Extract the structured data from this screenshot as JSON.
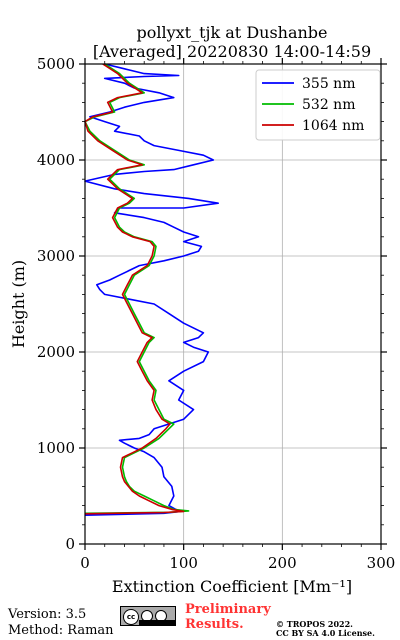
{
  "chart_data": {
    "type": "line",
    "title": [
      "pollyxt_tjk at Dushanbe",
      "[Averaged] 20220830 14:00-14:59"
    ],
    "xlabel": "Extinction Coefficient [Mm⁻¹]",
    "ylabel": "Height (m)",
    "xlim": [
      0,
      300
    ],
    "ylim": [
      0,
      5000
    ],
    "xticks": [
      0,
      100,
      200,
      300
    ],
    "yticks": [
      0,
      1000,
      2000,
      3000,
      4000,
      5000
    ],
    "grid": true,
    "legend_position": "top-right",
    "series": [
      {
        "name": "355 nm",
        "color": "#0000ff",
        "points": [
          [
            0,
            300
          ],
          [
            80,
            320
          ],
          [
            97,
            340
          ],
          [
            92,
            360
          ],
          [
            85,
            400
          ],
          [
            90,
            500
          ],
          [
            88,
            600
          ],
          [
            80,
            700
          ],
          [
            78,
            800
          ],
          [
            70,
            900
          ],
          [
            60,
            960
          ],
          [
            50,
            1000
          ],
          [
            40,
            1050
          ],
          [
            35,
            1080
          ],
          [
            55,
            1100
          ],
          [
            65,
            1140
          ],
          [
            70,
            1200
          ],
          [
            85,
            1250
          ],
          [
            100,
            1300
          ],
          [
            110,
            1400
          ],
          [
            95,
            1500
          ],
          [
            100,
            1600
          ],
          [
            85,
            1700
          ],
          [
            100,
            1800
          ],
          [
            120,
            1900
          ],
          [
            125,
            2000
          ],
          [
            110,
            2050
          ],
          [
            100,
            2100
          ],
          [
            115,
            2150
          ],
          [
            120,
            2200
          ],
          [
            100,
            2300
          ],
          [
            85,
            2400
          ],
          [
            70,
            2500
          ],
          [
            45,
            2550
          ],
          [
            20,
            2600
          ],
          [
            15,
            2650
          ],
          [
            12,
            2700
          ],
          [
            25,
            2750
          ],
          [
            35,
            2800
          ],
          [
            45,
            2850
          ],
          [
            55,
            2900
          ],
          [
            80,
            2950
          ],
          [
            100,
            3000
          ],
          [
            115,
            3050
          ],
          [
            118,
            3100
          ],
          [
            100,
            3150
          ],
          [
            115,
            3200
          ],
          [
            100,
            3250
          ],
          [
            90,
            3300
          ],
          [
            80,
            3350
          ],
          [
            60,
            3400
          ],
          [
            30,
            3450
          ],
          [
            35,
            3500
          ],
          [
            100,
            3500
          ],
          [
            135,
            3550
          ],
          [
            105,
            3600
          ],
          [
            60,
            3650
          ],
          [
            30,
            3700
          ],
          [
            0,
            3780
          ],
          [
            30,
            3850
          ],
          [
            60,
            3880
          ],
          [
            90,
            3900
          ],
          [
            110,
            3950
          ],
          [
            130,
            4000
          ],
          [
            120,
            4050
          ],
          [
            95,
            4100
          ],
          [
            70,
            4150
          ],
          [
            60,
            4200
          ],
          [
            55,
            4250
          ],
          [
            30,
            4300
          ],
          [
            35,
            4350
          ],
          [
            20,
            4400
          ],
          [
            5,
            4450
          ],
          [
            25,
            4500
          ],
          [
            40,
            4550
          ],
          [
            60,
            4600
          ],
          [
            90,
            4650
          ],
          [
            75,
            4700
          ],
          [
            50,
            4750
          ],
          [
            40,
            4800
          ],
          [
            20,
            4850
          ],
          [
            60,
            4870
          ],
          [
            95,
            4880
          ],
          [
            60,
            4900
          ],
          [
            40,
            4950
          ],
          [
            20,
            5000
          ]
        ]
      },
      {
        "name": "532 nm",
        "color": "#00bb00",
        "points": [
          [
            0,
            320
          ],
          [
            85,
            330
          ],
          [
            105,
            345
          ],
          [
            90,
            360
          ],
          [
            80,
            400
          ],
          [
            70,
            450
          ],
          [
            60,
            500
          ],
          [
            50,
            550
          ],
          [
            45,
            600
          ],
          [
            42,
            650
          ],
          [
            40,
            700
          ],
          [
            38,
            800
          ],
          [
            40,
            900
          ],
          [
            50,
            950
          ],
          [
            60,
            1000
          ],
          [
            75,
            1100
          ],
          [
            85,
            1200
          ],
          [
            90,
            1250
          ],
          [
            80,
            1300
          ],
          [
            75,
            1400
          ],
          [
            70,
            1500
          ],
          [
            72,
            1600
          ],
          [
            65,
            1700
          ],
          [
            60,
            1800
          ],
          [
            55,
            1900
          ],
          [
            60,
            2000
          ],
          [
            65,
            2100
          ],
          [
            70,
            2150
          ],
          [
            60,
            2200
          ],
          [
            55,
            2300
          ],
          [
            50,
            2400
          ],
          [
            45,
            2500
          ],
          [
            40,
            2600
          ],
          [
            45,
            2700
          ],
          [
            50,
            2800
          ],
          [
            65,
            2900
          ],
          [
            70,
            3000
          ],
          [
            72,
            3100
          ],
          [
            68,
            3150
          ],
          [
            50,
            3200
          ],
          [
            40,
            3250
          ],
          [
            35,
            3300
          ],
          [
            30,
            3400
          ],
          [
            35,
            3500
          ],
          [
            45,
            3550
          ],
          [
            50,
            3600
          ],
          [
            35,
            3700
          ],
          [
            25,
            3800
          ],
          [
            35,
            3900
          ],
          [
            60,
            3950
          ],
          [
            45,
            4000
          ],
          [
            30,
            4100
          ],
          [
            15,
            4200
          ],
          [
            5,
            4300
          ],
          [
            0,
            4400
          ],
          [
            10,
            4450
          ],
          [
            30,
            4500
          ],
          [
            25,
            4600
          ],
          [
            35,
            4650
          ],
          [
            60,
            4700
          ],
          [
            45,
            4800
          ],
          [
            35,
            4900
          ],
          [
            20,
            5000
          ]
        ]
      },
      {
        "name": "1064 nm",
        "color": "#cc0000",
        "points": [
          [
            0,
            315
          ],
          [
            80,
            328
          ],
          [
            100,
            340
          ],
          [
            88,
            360
          ],
          [
            75,
            400
          ],
          [
            65,
            450
          ],
          [
            55,
            500
          ],
          [
            48,
            550
          ],
          [
            44,
            600
          ],
          [
            40,
            650
          ],
          [
            38,
            700
          ],
          [
            36,
            800
          ],
          [
            38,
            900
          ],
          [
            48,
            950
          ],
          [
            58,
            1000
          ],
          [
            72,
            1100
          ],
          [
            82,
            1200
          ],
          [
            86,
            1250
          ],
          [
            78,
            1300
          ],
          [
            72,
            1400
          ],
          [
            68,
            1500
          ],
          [
            70,
            1600
          ],
          [
            63,
            1700
          ],
          [
            58,
            1800
          ],
          [
            53,
            1900
          ],
          [
            58,
            2000
          ],
          [
            63,
            2100
          ],
          [
            68,
            2150
          ],
          [
            58,
            2200
          ],
          [
            53,
            2300
          ],
          [
            48,
            2400
          ],
          [
            43,
            2500
          ],
          [
            38,
            2600
          ],
          [
            43,
            2700
          ],
          [
            48,
            2800
          ],
          [
            63,
            2900
          ],
          [
            68,
            3000
          ],
          [
            70,
            3100
          ],
          [
            66,
            3150
          ],
          [
            48,
            3200
          ],
          [
            38,
            3250
          ],
          [
            33,
            3300
          ],
          [
            28,
            3400
          ],
          [
            33,
            3500
          ],
          [
            43,
            3550
          ],
          [
            48,
            3600
          ],
          [
            33,
            3700
          ],
          [
            23,
            3800
          ],
          [
            33,
            3900
          ],
          [
            58,
            3950
          ],
          [
            43,
            4000
          ],
          [
            28,
            4100
          ],
          [
            13,
            4200
          ],
          [
            3,
            4300
          ],
          [
            0,
            4400
          ],
          [
            8,
            4450
          ],
          [
            28,
            4500
          ],
          [
            23,
            4600
          ],
          [
            33,
            4650
          ],
          [
            58,
            4700
          ],
          [
            43,
            4800
          ],
          [
            33,
            4900
          ],
          [
            18,
            5000
          ]
        ]
      }
    ]
  },
  "footer": {
    "version": "Version: 3.5",
    "method": "Method: Raman",
    "preliminary_line1": "Preliminary",
    "preliminary_line2": "Results.",
    "copyright_line1": "© TROPOS 2022.",
    "copyright_line2": "CC BY SA 4.0 License.",
    "license_badge": "cc BY SA"
  }
}
